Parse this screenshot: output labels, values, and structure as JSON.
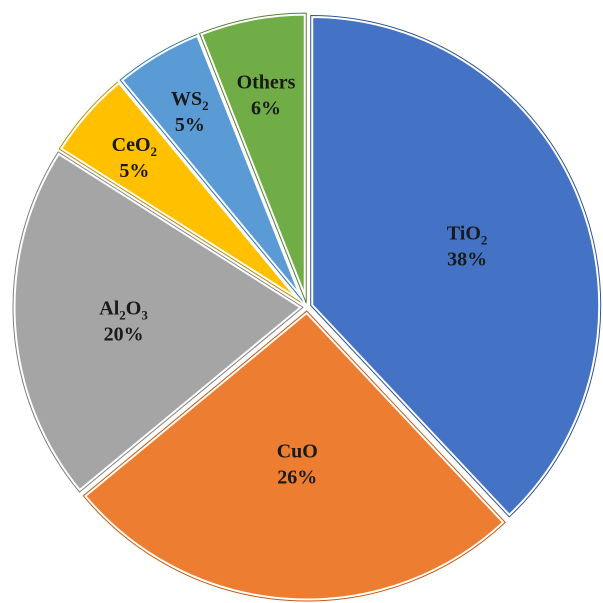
{
  "chart_data": {
    "type": "pie",
    "title": "",
    "slices": [
      {
        "label_main": "TiO",
        "label_sub": "2",
        "label_tail": "",
        "pct_label": "38%",
        "value": 38,
        "color": "#4472C4",
        "stroke": "#2F5597"
      },
      {
        "label_main": "CuO",
        "label_sub": "",
        "label_tail": "",
        "pct_label": "26%",
        "value": 26,
        "color": "#ED7D31",
        "stroke": "#C55A11"
      },
      {
        "label_main": "Al",
        "label_sub": "2",
        "label_tail": "O",
        "label_sub2": "3",
        "pct_label": "20%",
        "value": 20,
        "color": "#A5A5A5",
        "stroke": "#7F7F7F"
      },
      {
        "label_main": "CeO",
        "label_sub": "2",
        "label_tail": "",
        "pct_label": "5%",
        "value": 5,
        "color": "#FFC000",
        "stroke": "#BF9000"
      },
      {
        "label_main": "WS",
        "label_sub": "2",
        "label_tail": "",
        "pct_label": "5%",
        "value": 5,
        "color": "#5B9BD5",
        "stroke": "#2E75B6"
      },
      {
        "label_main": "Others",
        "label_sub": "",
        "label_tail": "",
        "pct_label": "6%",
        "value": 6,
        "color": "#70AD47",
        "stroke": "#548235"
      }
    ],
    "start_angle_deg": 0,
    "direction": "clockwise",
    "legend": "none",
    "data_labels": "inside"
  }
}
